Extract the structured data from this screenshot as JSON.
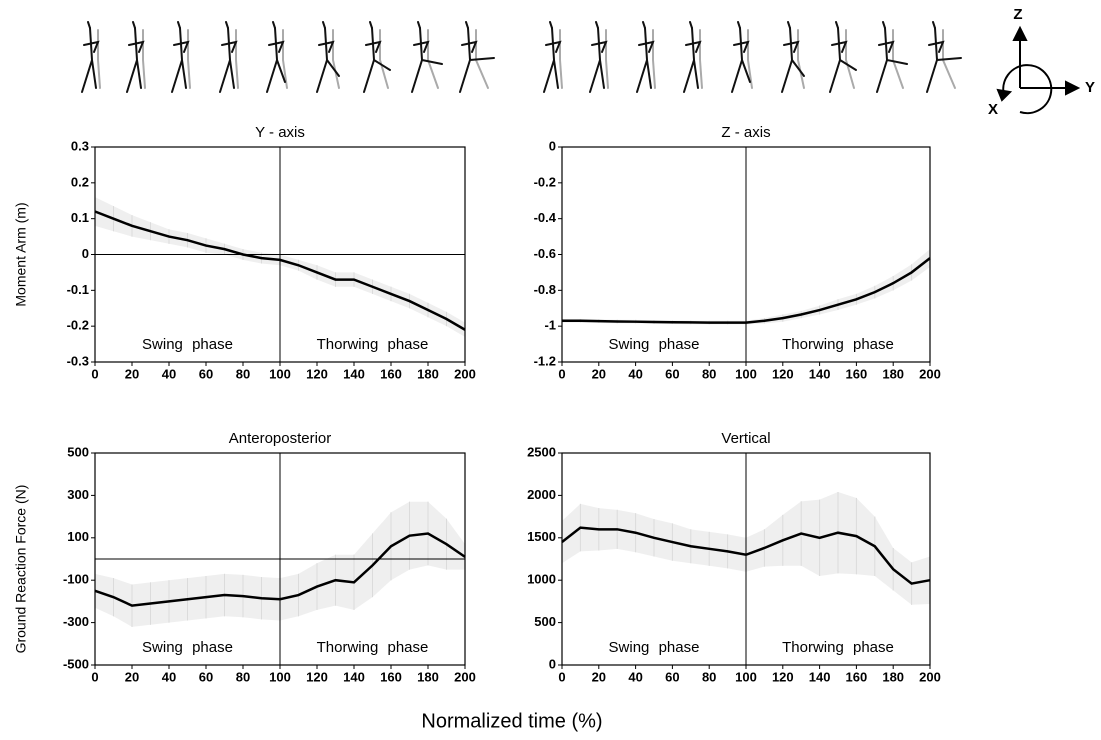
{
  "xlabel": "Normalized time (%)",
  "orientation_labels": [
    "Z",
    "Y",
    "X"
  ],
  "chart_data": [
    {
      "type": "line",
      "title": "Y - axis",
      "ylabel": "Moment Arm (m)",
      "x": [
        0,
        10,
        20,
        30,
        40,
        50,
        60,
        70,
        80,
        90,
        100,
        110,
        120,
        130,
        140,
        150,
        160,
        170,
        180,
        190,
        200
      ],
      "values": [
        0.12,
        0.1,
        0.08,
        0.065,
        0.05,
        0.04,
        0.025,
        0.015,
        0.0,
        -0.01,
        -0.015,
        -0.03,
        -0.05,
        -0.07,
        -0.07,
        -0.09,
        -0.11,
        -0.13,
        -0.155,
        -0.18,
        -0.21
      ],
      "errors": [
        0.04,
        0.035,
        0.03,
        0.025,
        0.02,
        0.02,
        0.02,
        0.015,
        0.015,
        0.015,
        0.015,
        0.015,
        0.02,
        0.02,
        0.02,
        0.02,
        0.02,
        0.02,
        0.02,
        0.02,
        0.02
      ],
      "xlim": [
        0,
        200
      ],
      "xticks": [
        0,
        20,
        40,
        60,
        80,
        100,
        120,
        140,
        160,
        180,
        200
      ],
      "ylim": [
        -0.3,
        0.3
      ],
      "yticks": [
        -0.3,
        -0.2,
        -0.1,
        0,
        0.1,
        0.2,
        0.3
      ],
      "hline": 0,
      "vline": 100,
      "annotations": [
        "Swing phase",
        "Thorwing phase"
      ]
    },
    {
      "type": "line",
      "title": "Z - axis",
      "x": [
        0,
        10,
        20,
        30,
        40,
        50,
        60,
        70,
        80,
        90,
        100,
        110,
        120,
        130,
        140,
        150,
        160,
        170,
        180,
        190,
        200
      ],
      "values": [
        -0.97,
        -0.97,
        -0.972,
        -0.974,
        -0.975,
        -0.977,
        -0.978,
        -0.979,
        -0.98,
        -0.98,
        -0.98,
        -0.97,
        -0.955,
        -0.935,
        -0.91,
        -0.88,
        -0.85,
        -0.81,
        -0.76,
        -0.7,
        -0.62
      ],
      "errors": [
        0.01,
        0.01,
        0.01,
        0.01,
        0.01,
        0.01,
        0.01,
        0.01,
        0.01,
        0.01,
        0.01,
        0.015,
        0.02,
        0.02,
        0.025,
        0.03,
        0.03,
        0.035,
        0.04,
        0.045,
        0.05
      ],
      "xlim": [
        0,
        200
      ],
      "xticks": [
        0,
        20,
        40,
        60,
        80,
        100,
        120,
        140,
        160,
        180,
        200
      ],
      "ylim": [
        -1.2,
        0
      ],
      "yticks": [
        -1.2,
        -1,
        -0.8,
        -0.6,
        -0.4,
        -0.2,
        0
      ],
      "vline": 100,
      "annotations": [
        "Swing phase",
        "Thorwing phase"
      ]
    },
    {
      "type": "line",
      "title": "Anteroposterior",
      "ylabel": "Ground Reaction Force (N)",
      "x": [
        0,
        10,
        20,
        30,
        40,
        50,
        60,
        70,
        80,
        90,
        100,
        110,
        120,
        130,
        140,
        150,
        160,
        170,
        180,
        190,
        200
      ],
      "values": [
        -150,
        -180,
        -220,
        -210,
        -200,
        -190,
        -180,
        -170,
        -175,
        -185,
        -190,
        -170,
        -130,
        -100,
        -110,
        -30,
        60,
        110,
        120,
        70,
        10
      ],
      "errors": [
        80,
        90,
        100,
        100,
        100,
        100,
        100,
        100,
        100,
        100,
        100,
        100,
        110,
        120,
        130,
        150,
        160,
        160,
        150,
        120,
        60
      ],
      "xlim": [
        0,
        200
      ],
      "xticks": [
        0,
        20,
        40,
        60,
        80,
        100,
        120,
        140,
        160,
        180,
        200
      ],
      "ylim": [
        -500,
        500
      ],
      "yticks": [
        -500,
        -300,
        -100,
        100,
        300,
        500
      ],
      "hline": 0,
      "vline": 100,
      "annotations": [
        "Swing phase",
        "Thorwing phase"
      ]
    },
    {
      "type": "line",
      "title": "Vertical",
      "x": [
        0,
        10,
        20,
        30,
        40,
        50,
        60,
        70,
        80,
        90,
        100,
        110,
        120,
        130,
        140,
        150,
        160,
        170,
        180,
        190,
        200
      ],
      "values": [
        1450,
        1620,
        1600,
        1600,
        1560,
        1500,
        1450,
        1400,
        1370,
        1340,
        1300,
        1380,
        1470,
        1550,
        1500,
        1560,
        1520,
        1400,
        1130,
        960,
        1000
      ],
      "errors": [
        250,
        280,
        250,
        230,
        230,
        220,
        220,
        200,
        200,
        200,
        200,
        220,
        300,
        380,
        450,
        480,
        450,
        350,
        250,
        250,
        280
      ],
      "xlim": [
        0,
        200
      ],
      "xticks": [
        0,
        20,
        40,
        60,
        80,
        100,
        120,
        140,
        160,
        180,
        200
      ],
      "ylim": [
        0,
        2500
      ],
      "yticks": [
        0,
        500,
        1000,
        1500,
        2000,
        2500
      ],
      "vline": 100,
      "annotations": [
        "Swing phase",
        "Thorwing phase"
      ]
    }
  ]
}
